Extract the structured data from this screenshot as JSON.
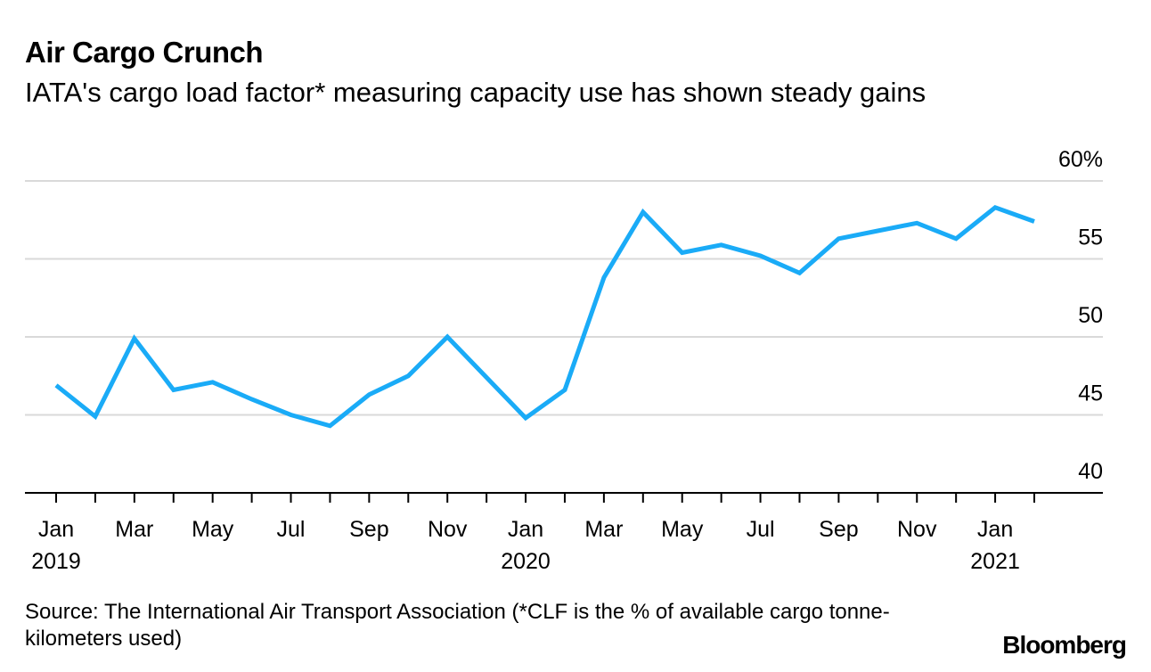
{
  "header": {
    "title": "Air Cargo Crunch",
    "subtitle": "IATA's cargo load factor* measuring capacity use has shown steady gains"
  },
  "footer": {
    "source": "Source: The International Air Transport Association (*CLF is the % of available cargo tonne-kilometers used)",
    "brand": "Bloomberg"
  },
  "colors": {
    "line": "#1aabf7",
    "grid": "#d9d9d9",
    "axis": "#000000"
  },
  "chart_data": {
    "type": "line",
    "title": "Air Cargo Crunch",
    "subtitle": "IATA's cargo load factor* measuring capacity use has shown steady gains",
    "x": [
      "2019-01",
      "2019-02",
      "2019-03",
      "2019-04",
      "2019-05",
      "2019-06",
      "2019-07",
      "2019-08",
      "2019-09",
      "2019-10",
      "2019-11",
      "2019-12",
      "2020-01",
      "2020-02",
      "2020-03",
      "2020-04",
      "2020-05",
      "2020-06",
      "2020-07",
      "2020-08",
      "2020-09",
      "2020-10",
      "2020-11",
      "2020-12",
      "2021-01",
      "2021-02"
    ],
    "series": [
      {
        "values": [
          46.9,
          44.9,
          49.9,
          46.6,
          47.1,
          46.0,
          45.0,
          44.3,
          46.3,
          47.5,
          50.0,
          47.4,
          44.8,
          46.6,
          53.8,
          58.0,
          55.4,
          55.9,
          55.2,
          54.1,
          56.3,
          56.8,
          57.3,
          56.3,
          58.3,
          57.4
        ]
      }
    ],
    "ylim": [
      40,
      60
    ],
    "yticks": [
      40,
      45,
      50,
      55,
      60
    ],
    "ytick_labels": [
      "40",
      "45",
      "50",
      "55",
      "60%"
    ],
    "xticks": [
      {
        "x": "2019-01",
        "label": "Jan",
        "year": "2019"
      },
      {
        "x": "2019-03",
        "label": "Mar",
        "year": ""
      },
      {
        "x": "2019-05",
        "label": "May",
        "year": ""
      },
      {
        "x": "2019-07",
        "label": "Jul",
        "year": ""
      },
      {
        "x": "2019-09",
        "label": "Sep",
        "year": ""
      },
      {
        "x": "2019-11",
        "label": "Nov",
        "year": ""
      },
      {
        "x": "2020-01",
        "label": "Jan",
        "year": "2020"
      },
      {
        "x": "2020-03",
        "label": "Mar",
        "year": ""
      },
      {
        "x": "2020-05",
        "label": "May",
        "year": ""
      },
      {
        "x": "2020-07",
        "label": "Jul",
        "year": ""
      },
      {
        "x": "2020-09",
        "label": "Sep",
        "year": ""
      },
      {
        "x": "2020-11",
        "label": "Nov",
        "year": ""
      },
      {
        "x": "2021-01",
        "label": "Jan",
        "year": "2021"
      }
    ],
    "grid": true,
    "y_axis_side": "right"
  }
}
